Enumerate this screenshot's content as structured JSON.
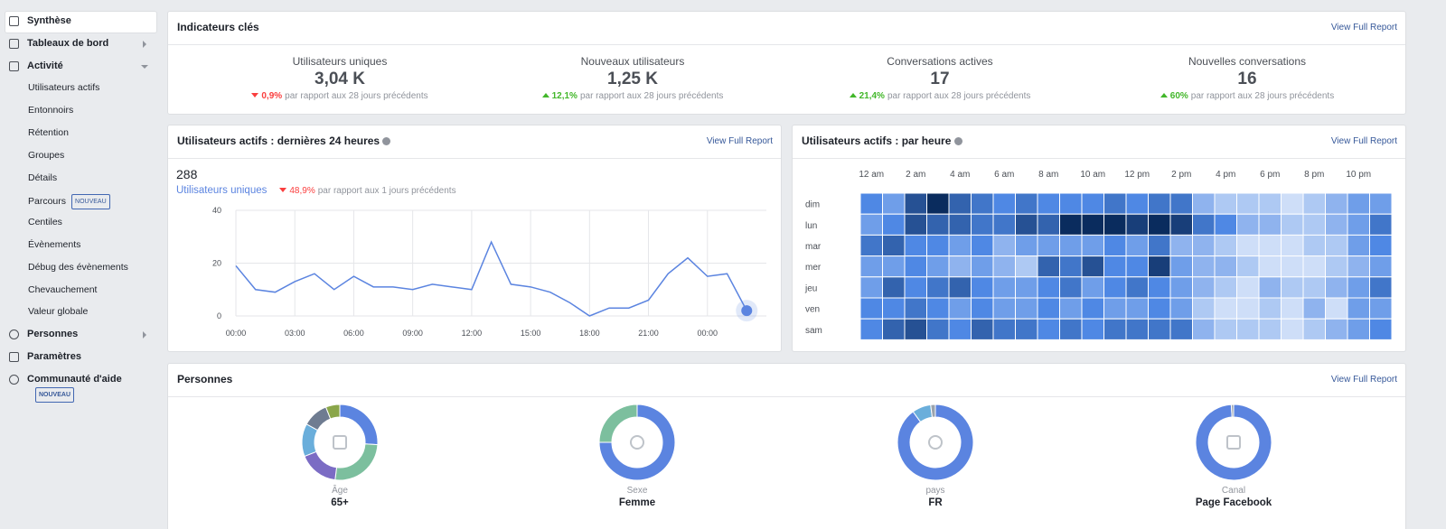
{
  "sidebar": {
    "selected": 0,
    "items": [
      {
        "label": "Synthèse"
      },
      {
        "label": "Tableaux de bord"
      },
      {
        "label": "Activité",
        "children": [
          {
            "label": "Utilisateurs actifs"
          },
          {
            "label": "Entonnoirs"
          },
          {
            "label": "Rétention"
          },
          {
            "label": "Groupes"
          },
          {
            "label": "Détails"
          },
          {
            "label": "Parcours",
            "badge": "NOUVEAU"
          },
          {
            "label": "Centiles"
          },
          {
            "label": "Évènements"
          },
          {
            "label": "Débug des évènements"
          },
          {
            "label": "Chevauchement"
          },
          {
            "label": "Valeur globale"
          }
        ]
      },
      {
        "label": "Personnes"
      },
      {
        "label": "Paramètres"
      },
      {
        "label": "Communauté d'aide",
        "badge": "NOUVEAU"
      }
    ]
  },
  "kpi_panel": {
    "title": "Indicateurs clés",
    "link": "View Full Report",
    "items": [
      {
        "label": "Utilisateurs uniques",
        "value": "3,04 K",
        "change": "0,9%",
        "direction": "down",
        "note": "par rapport aux 28 jours précédents"
      },
      {
        "label": "Nouveaux utilisateurs",
        "value": "1,25 K",
        "change": "12,1%",
        "direction": "up",
        "note": "par rapport aux 28 jours précédents"
      },
      {
        "label": "Conversations actives",
        "value": "17",
        "change": "21,4%",
        "direction": "up",
        "note": "par rapport aux 28 jours précédents"
      },
      {
        "label": "Nouvelles conversations",
        "value": "16",
        "change": "60%",
        "direction": "up",
        "note": "par rapport aux 28 jours précédents"
      }
    ]
  },
  "active_24h": {
    "type": "line",
    "title": "Utilisateurs actifs : dernières 24 heures",
    "link": "View Full Report",
    "total": 288,
    "series_name": "Utilisateurs uniques",
    "change": "48,9%",
    "direction": "down",
    "note": "par rapport aux 1 jours précédents",
    "color": "#5b84e0",
    "x": [
      0,
      1,
      2,
      3,
      4,
      5,
      6,
      7,
      8,
      9,
      10,
      11,
      12,
      13,
      14,
      15,
      16,
      17,
      18,
      19,
      20,
      21,
      22,
      23,
      24,
      25,
      26
    ],
    "values": [
      19,
      10,
      9,
      13,
      16,
      10,
      15,
      11,
      11,
      10,
      12,
      11,
      10,
      28,
      12,
      11,
      9,
      5,
      0,
      3,
      3,
      6,
      16,
      22,
      15,
      16,
      2
    ],
    "xlim": [
      0,
      27
    ],
    "xticks": [
      {
        "value": 0,
        "label": "00:00"
      },
      {
        "value": 3,
        "label": "03:00"
      },
      {
        "value": 6,
        "label": "06:00"
      },
      {
        "value": 9,
        "label": "09:00"
      },
      {
        "value": 12,
        "label": "12:00"
      },
      {
        "value": 15,
        "label": "15:00"
      },
      {
        "value": 18,
        "label": "18:00"
      },
      {
        "value": 21,
        "label": "21:00"
      },
      {
        "value": 24,
        "label": "00:00"
      }
    ],
    "ylim": [
      0,
      40
    ],
    "yticks": [
      0,
      20,
      40
    ],
    "grid": true
  },
  "heatmap": {
    "type": "heatmap",
    "title": "Utilisateurs actifs : par heure",
    "link": "View Full Report",
    "rows": [
      "dim",
      "lun",
      "mar",
      "mer",
      "jeu",
      "ven",
      "sam"
    ],
    "columns": [
      "12 am",
      null,
      "2 am",
      null,
      "4 am",
      null,
      "6 am",
      null,
      "8 am",
      null,
      "10 am",
      null,
      "12 pm",
      null,
      "2 pm",
      null,
      "4 pm",
      null,
      "6 pm",
      null,
      "8 pm",
      null,
      "10 pm",
      null
    ],
    "values": [
      [
        5,
        4,
        8,
        10,
        7,
        6,
        5,
        6,
        5,
        5,
        5,
        6,
        5,
        6,
        6,
        3,
        2,
        2,
        2,
        1,
        2,
        3,
        4,
        4
      ],
      [
        4,
        5,
        8,
        7,
        7,
        6,
        6,
        8,
        7,
        10,
        10,
        10,
        9,
        10,
        9,
        6,
        5,
        3,
        3,
        2,
        2,
        3,
        4,
        6
      ],
      [
        6,
        7,
        5,
        5,
        4,
        5,
        3,
        4,
        4,
        4,
        4,
        5,
        4,
        6,
        3,
        3,
        2,
        1,
        1,
        1,
        2,
        2,
        4,
        5
      ],
      [
        4,
        4,
        5,
        4,
        3,
        4,
        3,
        2,
        7,
        6,
        8,
        5,
        5,
        9,
        4,
        3,
        3,
        2,
        1,
        1,
        1,
        2,
        3,
        4
      ],
      [
        4,
        7,
        5,
        6,
        7,
        5,
        4,
        4,
        5,
        6,
        4,
        5,
        6,
        5,
        4,
        3,
        2,
        1,
        3,
        2,
        2,
        3,
        4,
        6
      ],
      [
        5,
        5,
        6,
        5,
        4,
        5,
        4,
        4,
        5,
        4,
        5,
        4,
        4,
        5,
        4,
        2,
        1,
        1,
        2,
        1,
        3,
        1,
        4,
        4
      ],
      [
        5,
        7,
        8,
        6,
        5,
        7,
        6,
        6,
        5,
        6,
        5,
        6,
        6,
        6,
        6,
        3,
        2,
        2,
        2,
        1,
        2,
        3,
        4,
        5
      ]
    ],
    "vlim": [
      0,
      10
    ],
    "colors": [
      "#eef4fd",
      "#4f88e4",
      "#0a2c5e"
    ]
  },
  "people": {
    "title": "Personnes",
    "link": "View Full Report",
    "donuts": [
      {
        "label": "Âge",
        "value": "65+",
        "segments": [
          {
            "value": 26,
            "color": "#5b84e0"
          },
          {
            "value": 26,
            "color": "#7cbf9e"
          },
          {
            "value": 17,
            "color": "#7b6cc4"
          },
          {
            "value": 14,
            "color": "#6aaedb"
          },
          {
            "value": 11,
            "color": "#6f7c91"
          },
          {
            "value": 6,
            "color": "#8aa64a"
          }
        ]
      },
      {
        "label": "Sexe",
        "value": "Femme",
        "segments": [
          {
            "value": 75,
            "color": "#5b84e0"
          },
          {
            "value": 25,
            "color": "#7cbf9e"
          }
        ]
      },
      {
        "label": "pays",
        "value": "FR",
        "segments": [
          {
            "value": 90,
            "color": "#5b84e0"
          },
          {
            "value": 8,
            "color": "#6aaedb"
          },
          {
            "value": 2,
            "color": "#9aa3ad"
          }
        ]
      },
      {
        "label": "Canal",
        "value": "Page Facebook",
        "segments": [
          {
            "value": 99,
            "color": "#5b84e0"
          },
          {
            "value": 1,
            "color": "#9aa3ad"
          }
        ]
      }
    ]
  }
}
